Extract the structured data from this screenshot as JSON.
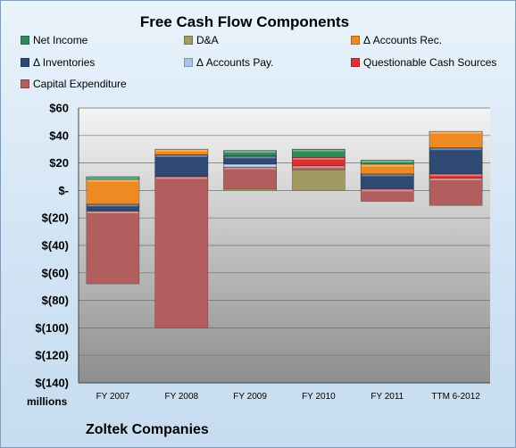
{
  "chart_data": {
    "type": "bar",
    "stacked": "waterfall",
    "title": "Free Cash Flow Components",
    "units_label": "millions",
    "footer": "Zoltek Companies",
    "categories": [
      "FY 2007",
      "FY 2008",
      "FY 2009",
      "FY 2010",
      "FY 2011",
      "TTM 6-2012"
    ],
    "ylim": [
      -140,
      60
    ],
    "yticks": [
      60,
      40,
      20,
      0,
      -20,
      -40,
      -60,
      -80,
      -100,
      -120,
      -140
    ],
    "ytick_labels": [
      "$60",
      "$40",
      "$20",
      "$-",
      "$(20)",
      "$(40)",
      "$(60)",
      "$(80)",
      "$(100)",
      "$(120)",
      "$(140)"
    ],
    "grid": true,
    "legend_position": "top",
    "series": [
      {
        "name": "Net Income",
        "color": "#2e8b57",
        "values": [
          -2,
          8,
          -4,
          -6,
          -3,
          24
        ]
      },
      {
        "name": "D&A",
        "color": "#a39a63",
        "values": [
          10,
          16,
          17,
          17,
          17,
          18
        ]
      },
      {
        "name": "Δ Accounts Rec.",
        "color": "#ed8a22",
        "values": [
          -18,
          -4,
          8,
          5,
          -7,
          -12
        ]
      },
      {
        "name": "Δ Inventories",
        "color": "#2e4a72",
        "values": [
          -5,
          -16,
          -6,
          8,
          -11,
          -19
        ]
      },
      {
        "name": "Δ Accounts Pay.",
        "color": "#a9c6e8",
        "values": [
          2,
          3,
          -2,
          0,
          5,
          1
        ]
      },
      {
        "name": "Questionable Cash Sources",
        "color": "#e02f2f",
        "values": [
          3,
          3,
          4,
          -6,
          -2,
          -3
        ]
      },
      {
        "name": "Capital Expenditure",
        "color": "#b35e5e",
        "values": [
          -53,
          -110,
          -16,
          -3,
          -9,
          -20
        ]
      }
    ],
    "segment_order": [
      [
        "D&A",
        "Net Income",
        "Δ Accounts Rec.",
        "Δ Inventories",
        "Capital Expenditure"
      ],
      [
        "Net Income",
        "D&A",
        "Δ Accounts Pay.",
        "Questionable Cash Sources",
        "Δ Accounts Rec.",
        "Δ Inventories",
        "Capital Expenditure"
      ],
      [
        "D&A",
        "Δ Accounts Rec.",
        "Questionable Cash Sources",
        "Net Income",
        "Δ Inventories",
        "Δ Accounts Pay.",
        "Capital Expenditure"
      ],
      [
        "D&A",
        "Δ Accounts Rec.",
        "Δ Inventories",
        "Net Income",
        "Questionable Cash Sources",
        "Capital Expenditure"
      ],
      [
        "D&A",
        "Δ Accounts Pay.",
        "Net Income",
        "Δ Accounts Rec.",
        "Δ Inventories",
        "Capital Expenditure"
      ],
      [
        "Net Income",
        "D&A",
        "Δ Accounts Pay.",
        "Δ Accounts Rec.",
        "Δ Inventories",
        "Questionable Cash Sources",
        "Capital Expenditure"
      ]
    ]
  }
}
